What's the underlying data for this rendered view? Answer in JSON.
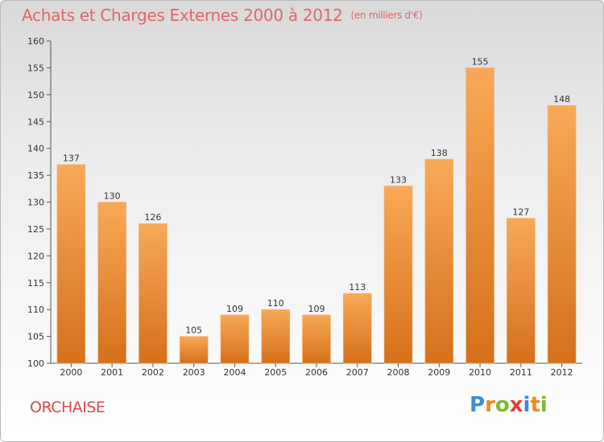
{
  "header": {
    "title": "Achats et Charges Externes 2000 à 2012",
    "subtitle": "(en milliers d'€)"
  },
  "commune": "ORCHAISE",
  "logo": {
    "text": "Proxiti",
    "letters": [
      {
        "ch": "P",
        "color": "#3a8fd6"
      },
      {
        "ch": "r",
        "color": "#f08a1c"
      },
      {
        "ch": "o",
        "color": "#7dbb2f"
      },
      {
        "ch": "x",
        "color": "#e83a3a"
      },
      {
        "ch": "i",
        "color": "#3a8fd6"
      },
      {
        "ch": "t",
        "color": "#f08a1c"
      },
      {
        "ch": "i",
        "color": "#7dbb2f"
      }
    ]
  },
  "colors": {
    "bar_light": "#f6a452",
    "bar_dark": "#d9741e",
    "title": "#e06666"
  },
  "chart_data": {
    "type": "bar",
    "title": "Achats et Charges Externes 2000 à 2012",
    "subtitle": "(en milliers d'€)",
    "categories": [
      "2000",
      "2001",
      "2002",
      "2003",
      "2004",
      "2005",
      "2006",
      "2007",
      "2008",
      "2009",
      "2010",
      "2011",
      "2012"
    ],
    "values": [
      137,
      130,
      126,
      105,
      109,
      110,
      109,
      113,
      133,
      138,
      155,
      127,
      148
    ],
    "ylim": [
      100,
      160
    ],
    "yticks": [
      100,
      105,
      110,
      115,
      120,
      125,
      130,
      135,
      140,
      145,
      150,
      155,
      160
    ],
    "grid": false,
    "xlabel": "",
    "ylabel": ""
  }
}
